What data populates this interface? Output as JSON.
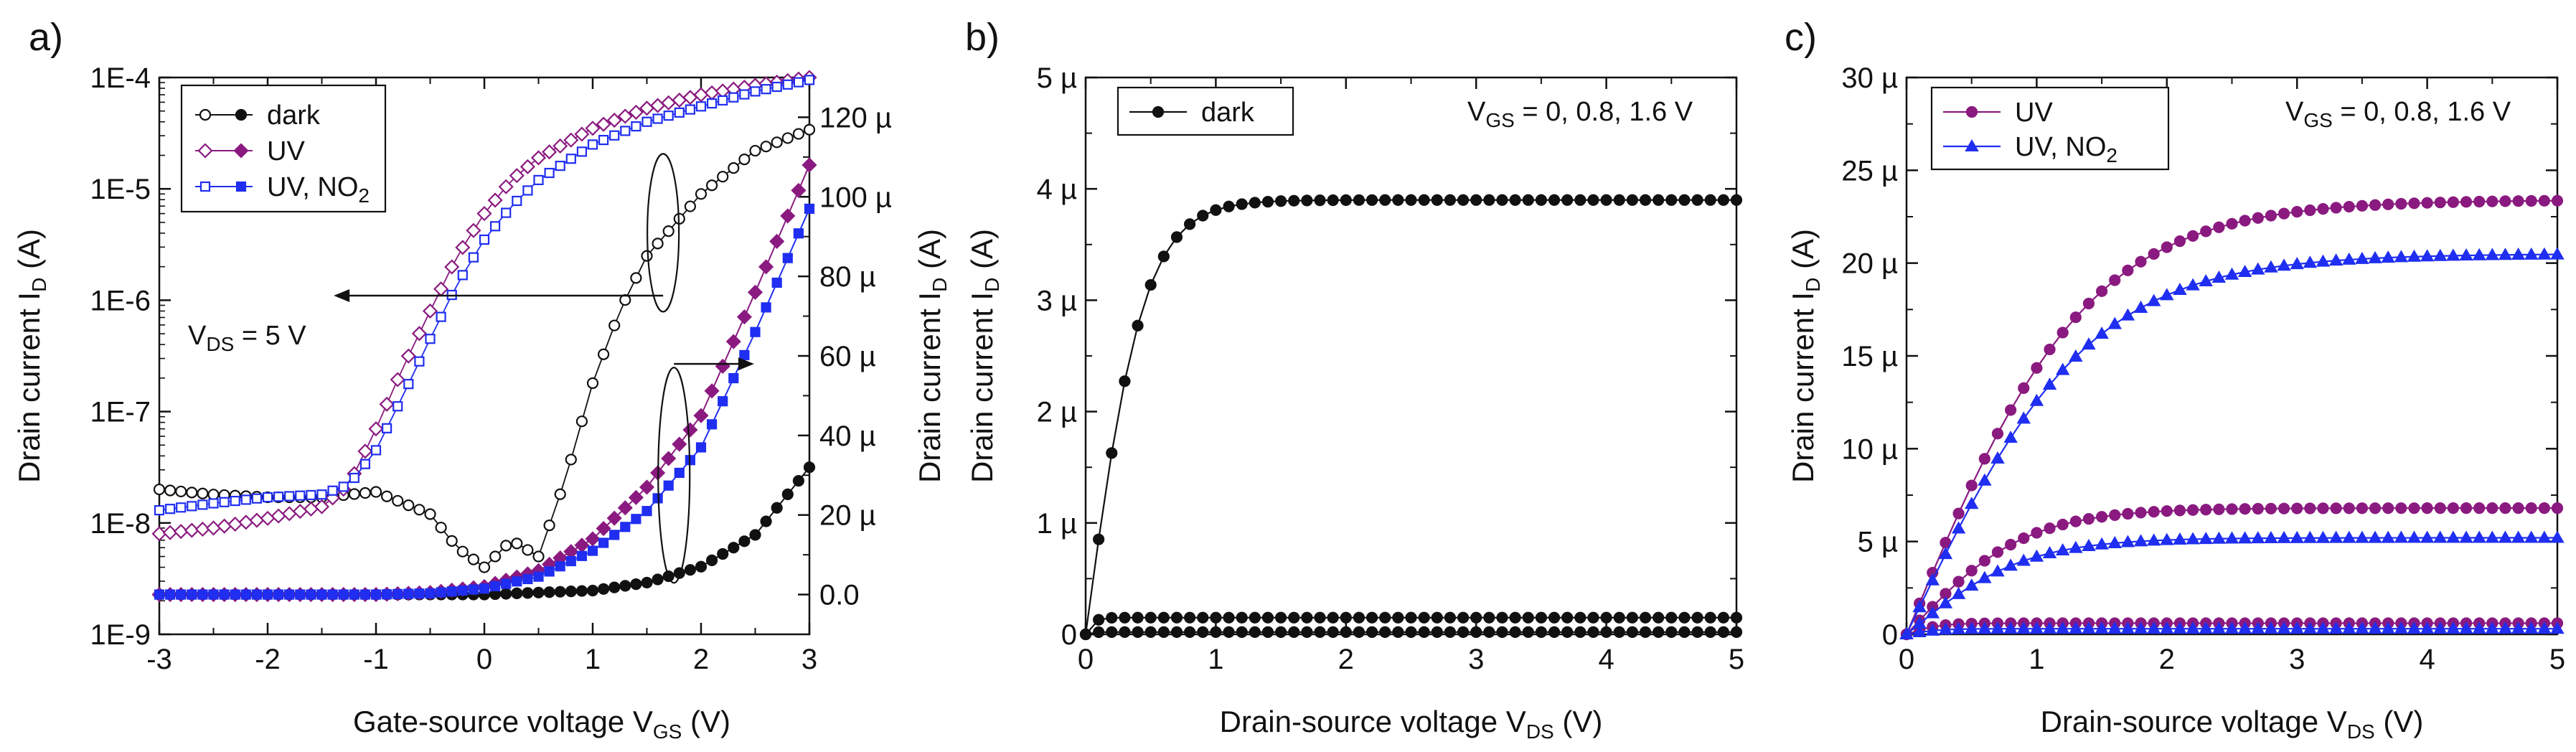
{
  "colors": {
    "dark": "#111111",
    "uv": "#8a1a80",
    "uvno2": "#1f2ef0"
  },
  "chart_data": [
    {
      "panel": "a)",
      "type": "line",
      "xlabel_main": "Gate-source voltage V",
      "xlabel_sub": "GS",
      "xlabel_tail": " (V)",
      "ylabel_main": "Drain current I",
      "ylabel_sub": "D",
      "ylabel_tail": " (A)",
      "y2label_main": "Drain current I",
      "y2label_sub": "D",
      "y2label_tail": " (A)",
      "xlim": [
        -3,
        3
      ],
      "ylim_log": [
        1e-09,
        0.0001
      ],
      "y2lim": [
        -1e-05,
        0.00013
      ],
      "x_ticks": [
        "-3",
        "-2",
        "-1",
        "0",
        "1",
        "2",
        "3"
      ],
      "y_ticks": [
        "1E-9",
        "1E-8",
        "1E-7",
        "1E-6",
        "1E-5",
        "1E-4"
      ],
      "y2_ticks": [
        "0.0",
        "20 µ",
        "40 µ",
        "60 µ",
        "80 µ",
        "100 µ",
        "120 µ"
      ],
      "legend": [
        {
          "label": "dark",
          "sub": ""
        },
        {
          "label": "UV",
          "sub": ""
        },
        {
          "label": "UV, NO",
          "sub": "2"
        }
      ],
      "annotation_main": "V",
      "annotation_sub": "DS",
      "annotation_tail": " = 5 V",
      "series_log": [
        {
          "name": "dark",
          "x": [
            -3.0,
            -2.5,
            -2.0,
            -1.5,
            -1.0,
            -0.5,
            -0.25,
            0.0,
            0.25,
            0.5,
            0.75,
            1.0,
            1.25,
            1.5,
            2.0,
            2.5,
            3.0
          ],
          "y": [
            2e-08,
            1.8e-08,
            1.7e-08,
            1.7e-08,
            1.9e-08,
            1.2e-08,
            6e-09,
            4e-09,
            7e-09,
            5e-09,
            2.5e-08,
            1.8e-07,
            8e-07,
            2.5e-06,
            9e-06,
            2.2e-05,
            3.4e-05
          ]
        },
        {
          "name": "UV",
          "x": [
            -3.0,
            -2.5,
            -2.0,
            -1.5,
            -1.25,
            -1.0,
            -0.75,
            -0.5,
            -0.25,
            0.0,
            0.25,
            0.5,
            1.0,
            1.5,
            2.0,
            2.5,
            3.0
          ],
          "y": [
            8e-09,
            9e-09,
            1.1e-08,
            1.4e-08,
            2.2e-08,
            7e-08,
            2.5e-07,
            8e-07,
            2.5e-06,
            6e-06,
            1.2e-05,
            1.9e-05,
            3.5e-05,
            5.3e-05,
            7e-05,
            8.5e-05,
            0.0001
          ]
        },
        {
          "name": "UV, NO2",
          "x": [
            -3.0,
            -2.5,
            -2.0,
            -1.5,
            -1.25,
            -1.0,
            -0.75,
            -0.5,
            -0.25,
            0.0,
            0.25,
            0.5,
            1.0,
            1.5,
            2.0,
            2.5,
            3.0
          ],
          "y": [
            1.3e-08,
            1.5e-08,
            1.7e-08,
            1.8e-08,
            2.2e-08,
            4.5e-08,
            1.4e-07,
            4.5e-07,
            1.4e-06,
            3.5e-06,
            7e-06,
            1.2e-05,
            2.5e-05,
            4e-05,
            5.5e-05,
            7.5e-05,
            9.5e-05
          ]
        }
      ],
      "series_linear": [
        {
          "name": "dark",
          "x": [
            -3.0,
            -1.0,
            0.0,
            1.0,
            1.5,
            2.0,
            2.5,
            3.0
          ],
          "y": [
            0,
            0,
            0,
            1e-06,
            3e-06,
            7e-06,
            1.5e-05,
            3.2e-05
          ]
        },
        {
          "name": "UV",
          "x": [
            -3.0,
            -1.0,
            -0.5,
            0.0,
            0.5,
            1.0,
            1.5,
            2.0,
            2.5,
            3.0
          ],
          "y": [
            0,
            0,
            5e-07,
            2e-06,
            6e-06,
            1.4e-05,
            2.7e-05,
            4.5e-05,
            7.6e-05,
            0.000108
          ]
        },
        {
          "name": "UV, NO2",
          "x": [
            -3.0,
            -1.0,
            -0.5,
            0.0,
            0.5,
            1.0,
            1.5,
            2.0,
            2.5,
            3.0
          ],
          "y": [
            0,
            0,
            3e-07,
            1.5e-06,
            4.5e-06,
            1.1e-05,
            2.1e-05,
            3.7e-05,
            6.6e-05,
            9.7e-05
          ]
        }
      ]
    },
    {
      "panel": "b)",
      "type": "line",
      "xlabel_main": "Drain-source voltage V",
      "xlabel_sub": "DS",
      "xlabel_tail": " (V)",
      "ylabel_main": "Drain current I",
      "ylabel_sub": "D",
      "ylabel_tail": " (A)",
      "xlim": [
        0,
        5
      ],
      "ylim": [
        0,
        5e-06
      ],
      "x_ticks": [
        "0",
        "1",
        "2",
        "3",
        "4",
        "5"
      ],
      "y_ticks": [
        "0",
        "1 µ",
        "2 µ",
        "3 µ",
        "4 µ",
        "5 µ"
      ],
      "legend": [
        {
          "label": "dark",
          "sub": ""
        }
      ],
      "annotation_main": "V",
      "annotation_sub": "GS",
      "annotation_tail": " = 0, 0.8, 1.6 V",
      "curves": [
        {
          "name": "dark",
          "vgs": "1.6",
          "isat": 3.9e-06,
          "vsat": 0.9
        },
        {
          "name": "dark",
          "vgs": "0.8",
          "isat": 1.5e-07,
          "vsat": 0.15
        },
        {
          "name": "dark",
          "vgs": "0",
          "isat": 2e-08,
          "vsat": 0.1
        }
      ]
    },
    {
      "panel": "c)",
      "type": "line",
      "xlabel_main": "Drain-source voltage V",
      "xlabel_sub": "DS",
      "xlabel_tail": " (V)",
      "ylabel_main": "Drain current I",
      "ylabel_sub": "D",
      "ylabel_tail": " (A)",
      "xlim": [
        0,
        5
      ],
      "ylim": [
        0,
        3e-05
      ],
      "x_ticks": [
        "0",
        "1",
        "2",
        "3",
        "4",
        "5"
      ],
      "y_ticks": [
        "0",
        "5 µ",
        "10 µ",
        "15 µ",
        "20 µ",
        "25 µ",
        "30 µ"
      ],
      "legend": [
        {
          "label": "UV",
          "sub": ""
        },
        {
          "label": "UV, NO",
          "sub": "2"
        }
      ],
      "annotation_main": "V",
      "annotation_sub": "GS",
      "annotation_tail": " = 0, 0.8, 1.6 V",
      "curves": [
        {
          "name": "UV",
          "vgs": "1.6",
          "isat": 2.34e-05,
          "vsat": 2.8
        },
        {
          "name": "UV",
          "vgs": "0.8",
          "isat": 6.8e-06,
          "vsat": 1.8
        },
        {
          "name": "UV",
          "vgs": "0",
          "isat": 6e-07,
          "vsat": 0.5
        },
        {
          "name": "UV, NO2",
          "vgs": "1.6",
          "isat": 2.05e-05,
          "vsat": 2.8
        },
        {
          "name": "UV, NO2",
          "vgs": "0.8",
          "isat": 5.2e-06,
          "vsat": 1.8
        },
        {
          "name": "UV, NO2",
          "vgs": "0",
          "isat": 3e-07,
          "vsat": 0.5
        }
      ]
    }
  ]
}
